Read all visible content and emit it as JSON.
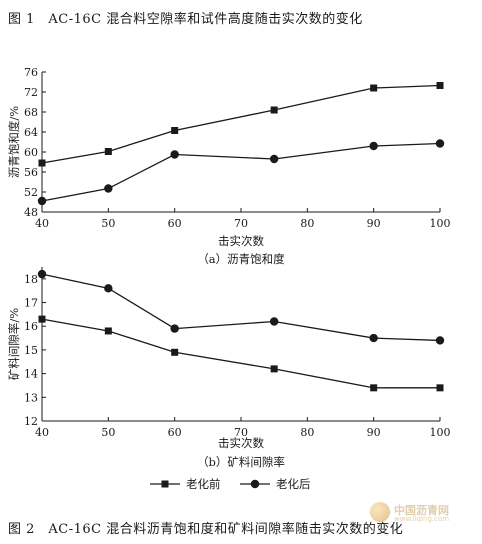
{
  "figure1_caption": "图 1　AC-16C 混合料空隙率和试件高度随击实次数的变化",
  "figure2_caption": "图 2　AC-16C 混合料沥青饱和度和矿料间隙率随击实次数的变化",
  "legend": {
    "before_label": "老化前",
    "after_label": "老化后"
  },
  "watermark": {
    "name": "中国沥青网",
    "url": "www.liqing.com"
  },
  "chart_data": [
    {
      "type": "line",
      "subtitle": "（a）沥青饱和度",
      "xlabel": "击实次数",
      "ylabel": "沥青饱和度/%",
      "x": [
        40,
        50,
        60,
        75,
        90,
        100
      ],
      "xticks": [
        40,
        50,
        60,
        70,
        80,
        90,
        100
      ],
      "xlim": [
        40,
        100
      ],
      "ylim": [
        48,
        76
      ],
      "yticks": [
        48,
        52,
        56,
        60,
        64,
        68,
        72,
        76
      ],
      "grid": false,
      "series": [
        {
          "name": "老化前",
          "marker": "square",
          "values": [
            57.8,
            60.1,
            64.3,
            68.4,
            72.8,
            73.3
          ]
        },
        {
          "name": "老化后",
          "marker": "circle",
          "values": [
            50.2,
            52.7,
            59.5,
            58.6,
            61.2,
            61.7
          ]
        }
      ]
    },
    {
      "type": "line",
      "subtitle": "（b）矿料间隙率",
      "xlabel": "击实次数",
      "ylabel": "矿料间隙率/%",
      "x": [
        40,
        50,
        60,
        75,
        90,
        100
      ],
      "xticks": [
        40,
        50,
        60,
        70,
        80,
        90,
        100
      ],
      "xlim": [
        40,
        100
      ],
      "ylim": [
        12,
        18.5
      ],
      "yticks": [
        12,
        13,
        14,
        15,
        16,
        17,
        18
      ],
      "grid": false,
      "legend": "bottom-center",
      "series": [
        {
          "name": "老化前",
          "marker": "square",
          "values": [
            16.3,
            15.8,
            14.9,
            14.2,
            13.4,
            13.4
          ]
        },
        {
          "name": "老化后",
          "marker": "circle",
          "values": [
            18.2,
            17.6,
            15.9,
            16.2,
            15.5,
            15.4
          ]
        }
      ]
    }
  ]
}
